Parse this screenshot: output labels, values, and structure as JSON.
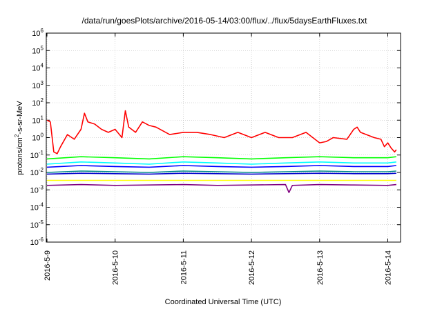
{
  "chart_data": {
    "type": "line",
    "title": "/data/run/goesPlots/archive/2016-05-14/03:00/flux/../flux/5daysEarthFluxes.txt",
    "xlabel": "Coordinated Universal Time (UTC)",
    "ylabel": {
      "pre": "protons/cm",
      "sup": "2",
      "post": "-s-sr-MeV"
    },
    "yscale": "log",
    "ylim": [
      1e-06,
      1000000.0
    ],
    "y_ticks": [
      {
        "exp": "-6",
        "v": -6
      },
      {
        "exp": "-5",
        "v": -5
      },
      {
        "exp": "-4",
        "v": -4
      },
      {
        "exp": "-3",
        "v": -3
      },
      {
        "exp": "-2",
        "v": -2
      },
      {
        "exp": "-1",
        "v": -1
      },
      {
        "exp": "0",
        "v": 0
      },
      {
        "exp": "1",
        "v": 1
      },
      {
        "exp": "2",
        "v": 2
      },
      {
        "exp": "3",
        "v": 3
      },
      {
        "exp": "4",
        "v": 4
      },
      {
        "exp": "5",
        "v": 5
      },
      {
        "exp": "6",
        "v": 6
      }
    ],
    "y_tick_base": "10",
    "xlim": [
      "2016-05-09 00:00",
      "2016-05-14 03:00"
    ],
    "x_ticks": [
      "2016-5-9",
      "2016-5-10",
      "2016-5-11",
      "2016-5-12",
      "2016-5-13",
      "2016-5-14"
    ],
    "grid": true,
    "legend": "none",
    "series": [
      {
        "color": "#ff0000",
        "x": [
          0.0,
          0.05,
          0.1,
          0.15,
          0.2,
          0.3,
          0.4,
          0.5,
          0.55,
          0.6,
          0.7,
          0.8,
          0.9,
          1.0,
          1.1,
          1.15,
          1.2,
          1.3,
          1.4,
          1.5,
          1.6,
          1.8,
          2.0,
          2.2,
          2.4,
          2.6,
          2.8,
          3.0,
          3.2,
          3.4,
          3.6,
          3.8,
          4.0,
          4.1,
          4.2,
          4.4,
          4.5,
          4.55,
          4.6,
          4.8,
          4.9,
          4.95,
          5.0,
          5.05,
          5.1,
          5.125
        ],
        "y": [
          10,
          8,
          0.15,
          0.12,
          0.3,
          1.5,
          0.8,
          3.0,
          25,
          8.0,
          6.0,
          3.0,
          2.0,
          3.0,
          1.0,
          35,
          4.0,
          2.0,
          8.0,
          5.0,
          4.0,
          1.5,
          2.0,
          2.0,
          1.5,
          1.0,
          2.0,
          1.0,
          2.0,
          1.0,
          1.0,
          2.0,
          0.5,
          0.6,
          1.0,
          0.8,
          3.0,
          4.0,
          2.0,
          1.0,
          0.8,
          0.3,
          0.5,
          0.25,
          0.15,
          0.2
        ]
      },
      {
        "color": "#00ff00",
        "x": [
          0.0,
          0.5,
          1.0,
          1.5,
          2.0,
          2.5,
          3.0,
          3.5,
          4.0,
          4.5,
          5.0,
          5.125
        ],
        "y": [
          0.06,
          0.08,
          0.07,
          0.06,
          0.08,
          0.07,
          0.06,
          0.07,
          0.08,
          0.07,
          0.07,
          0.08
        ]
      },
      {
        "color": "#00ffff",
        "x": [
          0.0,
          0.5,
          1.0,
          1.5,
          2.0,
          2.5,
          3.0,
          3.5,
          4.0,
          4.5,
          5.0,
          5.125
        ],
        "y": [
          0.03,
          0.04,
          0.035,
          0.03,
          0.04,
          0.035,
          0.03,
          0.035,
          0.04,
          0.035,
          0.035,
          0.04
        ]
      },
      {
        "color": "#0000ff",
        "x": [
          0.0,
          0.5,
          1.0,
          1.5,
          2.0,
          2.5,
          3.0,
          3.5,
          4.0,
          4.5,
          5.0,
          5.125
        ],
        "y": [
          0.02,
          0.025,
          0.022,
          0.02,
          0.025,
          0.022,
          0.02,
          0.022,
          0.025,
          0.022,
          0.022,
          0.025
        ]
      },
      {
        "color": "#008b8b",
        "x": [
          0.0,
          0.5,
          1.0,
          1.5,
          2.0,
          2.5,
          3.0,
          3.5,
          4.0,
          4.5,
          5.0,
          5.125
        ],
        "y": [
          0.01,
          0.012,
          0.011,
          0.01,
          0.012,
          0.011,
          0.01,
          0.011,
          0.012,
          0.011,
          0.011,
          0.012
        ]
      },
      {
        "color": "#0000cd",
        "x": [
          0.0,
          0.5,
          1.0,
          1.5,
          2.0,
          2.5,
          3.0,
          3.5,
          4.0,
          4.5,
          5.0,
          5.125
        ],
        "y": [
          0.008,
          0.009,
          0.0085,
          0.008,
          0.009,
          0.0085,
          0.008,
          0.0085,
          0.009,
          0.0085,
          0.0085,
          0.009
        ]
      },
      {
        "color": "#ffff00",
        "x": [
          0.0,
          1.0,
          2.0,
          3.0,
          4.0,
          5.0,
          5.125
        ],
        "y": [
          0.0035,
          0.0035,
          0.0035,
          0.0035,
          0.0035,
          0.0035,
          0.0035
        ]
      },
      {
        "color": "#800080",
        "x": [
          0.0,
          0.5,
          1.0,
          1.5,
          2.0,
          2.5,
          3.0,
          3.5,
          3.55,
          3.6,
          4.0,
          4.5,
          5.0,
          5.125
        ],
        "y": [
          0.0018,
          0.002,
          0.0018,
          0.0019,
          0.002,
          0.0018,
          0.0019,
          0.002,
          0.0007,
          0.0018,
          0.002,
          0.0019,
          0.0018,
          0.002
        ]
      }
    ]
  }
}
